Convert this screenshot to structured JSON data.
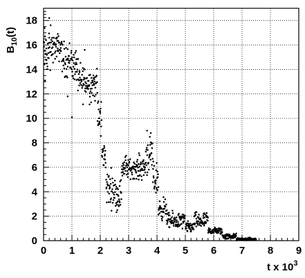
{
  "chart_data": {
    "type": "scatter",
    "ylabel": "B",
    "ylabel_sub": "10",
    "ylabel_tail": "(t)",
    "xlabel": "t x 10",
    "xlabel_sup": "3",
    "xlim": [
      0,
      9
    ],
    "ylim": [
      0,
      19
    ],
    "x_ticks": [
      0,
      1,
      2,
      3,
      4,
      5,
      6,
      7,
      8,
      9
    ],
    "y_ticks": [
      0,
      2,
      4,
      6,
      8,
      10,
      12,
      14,
      16,
      18
    ],
    "grid": true,
    "marker_color": "#000000",
    "segments": [
      {
        "x_range": [
          0.0,
          0.25
        ],
        "y_center": 15.4,
        "y_spread": 1.8
      },
      {
        "x_range": [
          0.25,
          0.65
        ],
        "y_center": 15.8,
        "y_spread": 1.0
      },
      {
        "x_range": [
          0.65,
          1.0
        ],
        "y_center": 14.8,
        "y_spread": 1.3
      },
      {
        "x_range": [
          1.0,
          1.2
        ],
        "y_center": 14.3,
        "y_spread": 1.2
      },
      {
        "x_range": [
          1.2,
          1.55
        ],
        "y_center": 13.0,
        "y_spread": 1.4
      },
      {
        "x_range": [
          1.55,
          1.9
        ],
        "y_center": 12.8,
        "y_spread": 1.2
      },
      {
        "x_range": [
          1.9,
          2.05
        ],
        "y_center": 10.0,
        "y_spread": 1.5
      },
      {
        "x_range": [
          2.05,
          2.2
        ],
        "y_center": 7.0,
        "y_spread": 1.0
      },
      {
        "x_range": [
          2.2,
          2.5
        ],
        "y_center": 4.3,
        "y_spread": 1.3
      },
      {
        "x_range": [
          2.5,
          2.75
        ],
        "y_center": 3.8,
        "y_spread": 1.1
      },
      {
        "x_range": [
          2.75,
          2.95
        ],
        "y_center": 6.0,
        "y_spread": 0.9
      },
      {
        "x_range": [
          2.95,
          3.35
        ],
        "y_center": 5.9,
        "y_spread": 0.7
      },
      {
        "x_range": [
          3.35,
          3.6
        ],
        "y_center": 6.0,
        "y_spread": 0.9
      },
      {
        "x_range": [
          3.6,
          3.85
        ],
        "y_center": 7.0,
        "y_spread": 1.4
      },
      {
        "x_range": [
          3.85,
          4.05
        ],
        "y_center": 5.0,
        "y_spread": 1.2
      },
      {
        "x_range": [
          4.05,
          4.35
        ],
        "y_center": 2.6,
        "y_spread": 0.8
      },
      {
        "x_range": [
          4.35,
          5.0
        ],
        "y_center": 1.6,
        "y_spread": 0.6
      },
      {
        "x_range": [
          5.0,
          5.3
        ],
        "y_center": 1.1,
        "y_spread": 0.4
      },
      {
        "x_range": [
          5.3,
          5.8
        ],
        "y_center": 1.6,
        "y_spread": 0.6
      },
      {
        "x_range": [
          5.8,
          6.3
        ],
        "y_center": 0.8,
        "y_spread": 0.25
      },
      {
        "x_range": [
          6.3,
          6.8
        ],
        "y_center": 0.35,
        "y_spread": 0.2
      },
      {
        "x_range": [
          6.8,
          7.5
        ],
        "y_center": 0.12,
        "y_spread": 0.1
      }
    ],
    "outliers": [
      {
        "x": 0.2,
        "y": 18.2
      },
      {
        "x": 0.05,
        "y": 13.1
      },
      {
        "x": 1.0,
        "y": 10.1
      },
      {
        "x": 1.45,
        "y": 15.6
      },
      {
        "x": 0.85,
        "y": 11.8
      },
      {
        "x": 3.65,
        "y": 9.0
      },
      {
        "x": 2.6,
        "y": 2.5
      }
    ]
  }
}
